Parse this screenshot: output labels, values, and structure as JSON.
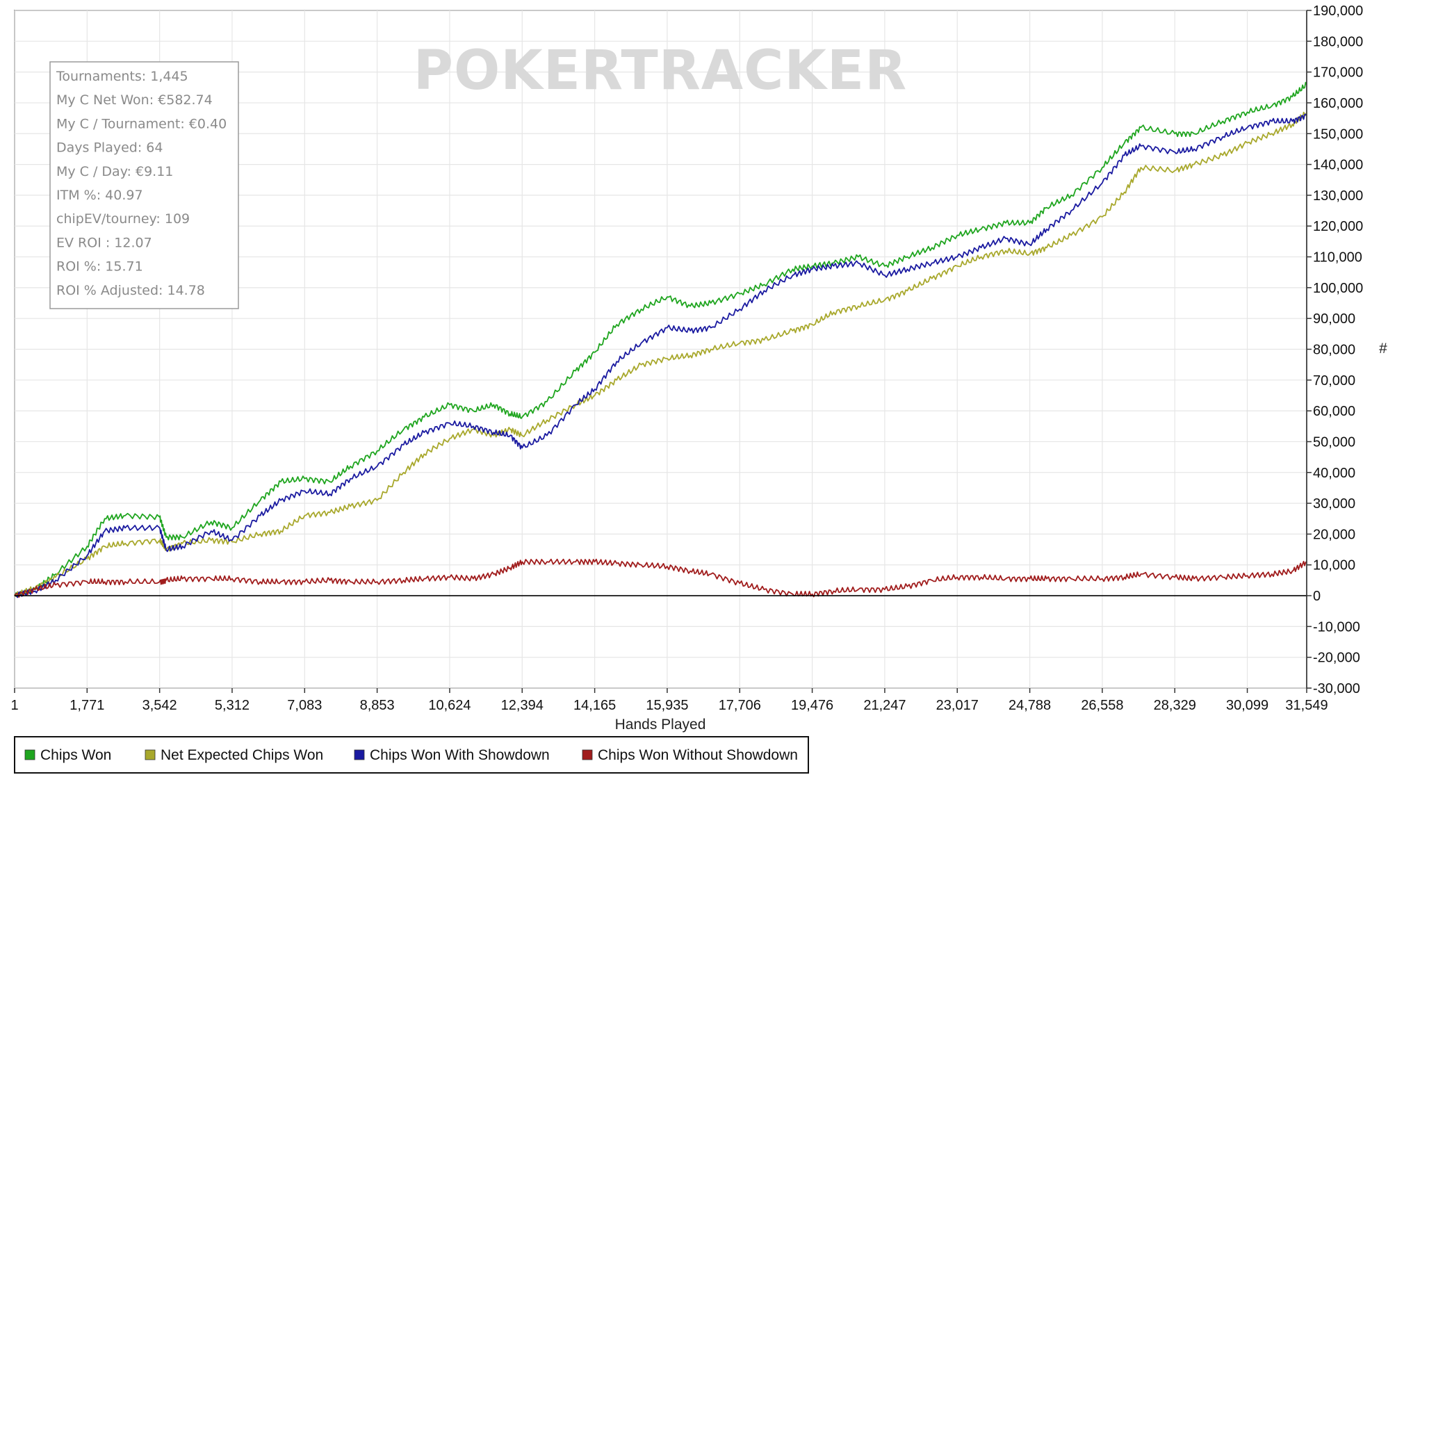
{
  "watermark": "POKERTRACKER",
  "stats_box": [
    "Tournaments: 1,445",
    "My C Net Won: €582.74",
    "My C / Tournament: €0.40",
    "Days Played: 64",
    "My C / Day: €9.11",
    "ITM %: 40.97",
    "chipEV/tourney: 109",
    "EV ROI : 12.07",
    "ROI %: 15.71",
    "ROI % Adjusted: 14.78"
  ],
  "y_unit_marker": "#",
  "colors": {
    "chips_won": "#1fa51f",
    "net_expected": "#a8a82c",
    "with_showdown": "#1a1aa0",
    "without_showdown": "#a01c1c",
    "grid": "#e6e6e6",
    "axis": "#000000"
  },
  "chart_data": {
    "type": "line",
    "xlabel": "Hands Played",
    "ylabel": "",
    "xlim": [
      1,
      31549
    ],
    "ylim": [
      -30000,
      190000
    ],
    "x_ticks": [
      "1",
      "1,771",
      "3,542",
      "5,312",
      "7,083",
      "8,853",
      "10,624",
      "12,394",
      "14,165",
      "15,935",
      "17,706",
      "19,476",
      "21,247",
      "23,017",
      "24,788",
      "26,558",
      "28,329",
      "30,099",
      "31,549"
    ],
    "y_ticks": [
      "190,000",
      "180,000",
      "170,000",
      "160,000",
      "150,000",
      "140,000",
      "130,000",
      "120,000",
      "110,000",
      "100,000",
      "90,000",
      "80,000",
      "70,000",
      "60,000",
      "50,000",
      "40,000",
      "30,000",
      "20,000",
      "10,000",
      "0",
      "-10,000",
      "-20,000",
      "-30,000"
    ],
    "grid": true,
    "legend_position": "bottom-left",
    "x": [
      1,
      500,
      1000,
      1771,
      2200,
      2700,
      3542,
      3700,
      4100,
      4800,
      5312,
      6000,
      6500,
      7083,
      7700,
      8200,
      8853,
      9500,
      10000,
      10624,
      11200,
      11700,
      12100,
      12394,
      13000,
      13700,
      14165,
      14700,
      15300,
      15935,
      16500,
      17000,
      17706,
      18300,
      19000,
      19476,
      20000,
      20600,
      21247,
      21800,
      22400,
      23017,
      23600,
      24200,
      24788,
      25200,
      25800,
      26558,
      27100,
      27500,
      28329,
      28800,
      29500,
      30099,
      30700,
      31200,
      31549
    ],
    "series": [
      {
        "name": "Chips Won",
        "color_key": "chips_won",
        "values": [
          0,
          2000,
          7000,
          16000,
          25000,
          26000,
          25500,
          19000,
          19000,
          24000,
          22000,
          31000,
          37000,
          38000,
          37000,
          42000,
          47000,
          54000,
          58000,
          62000,
          60000,
          62000,
          59000,
          58000,
          63000,
          73000,
          79000,
          88000,
          93000,
          97000,
          94000,
          95000,
          98000,
          101000,
          106000,
          107000,
          108000,
          110000,
          107000,
          110000,
          113000,
          117000,
          119000,
          121000,
          121000,
          126000,
          130000,
          139000,
          147000,
          152000,
          150000,
          150000,
          154000,
          157000,
          159000,
          162000,
          166000
        ]
      },
      {
        "name": "Net Expected Chips Won",
        "color_key": "net_expected",
        "values": [
          0,
          2500,
          6000,
          12000,
          16000,
          17000,
          18000,
          15000,
          17000,
          18000,
          17500,
          20000,
          21000,
          26000,
          27000,
          29000,
          31000,
          40000,
          46000,
          51000,
          54000,
          52000,
          54000,
          52000,
          57000,
          62000,
          65000,
          70000,
          75000,
          77000,
          78000,
          80000,
          82000,
          83000,
          86000,
          88000,
          92000,
          94000,
          96000,
          99000,
          103000,
          107000,
          110000,
          112000,
          111000,
          113000,
          117000,
          123000,
          131000,
          139000,
          138000,
          140000,
          143000,
          147000,
          150000,
          153000,
          157000
        ]
      },
      {
        "name": "Chips Won With Showdown",
        "color_key": "with_showdown",
        "values": [
          0,
          1500,
          5000,
          13000,
          21000,
          22000,
          22000,
          15000,
          16000,
          21000,
          18000,
          26000,
          31000,
          34000,
          33000,
          38000,
          42000,
          49000,
          53000,
          56000,
          55000,
          53000,
          52000,
          48000,
          52000,
          62000,
          67000,
          76000,
          82000,
          87000,
          86000,
          87000,
          93000,
          99000,
          104000,
          106000,
          107000,
          108000,
          104000,
          106000,
          108000,
          110000,
          113000,
          116000,
          114000,
          119000,
          125000,
          134000,
          143000,
          146000,
          144000,
          145000,
          149000,
          152000,
          154000,
          154000,
          156000
        ]
      },
      {
        "name": "Chips Won Without Showdown",
        "color_key": "without_showdown",
        "values": [
          0,
          2000,
          3500,
          4500,
          4500,
          4500,
          4500,
          5000,
          5500,
          5500,
          5500,
          4500,
          4500,
          4500,
          5000,
          4500,
          4500,
          5000,
          5500,
          6000,
          5500,
          7000,
          9000,
          11000,
          11000,
          11000,
          11000,
          10500,
          10000,
          9500,
          8000,
          7000,
          4000,
          2000,
          500,
          500,
          1500,
          2000,
          2000,
          3000,
          5000,
          6000,
          6000,
          5500,
          5500,
          5500,
          5500,
          5500,
          6000,
          7000,
          6000,
          5500,
          6000,
          6500,
          7000,
          8000,
          11000
        ]
      }
    ]
  }
}
